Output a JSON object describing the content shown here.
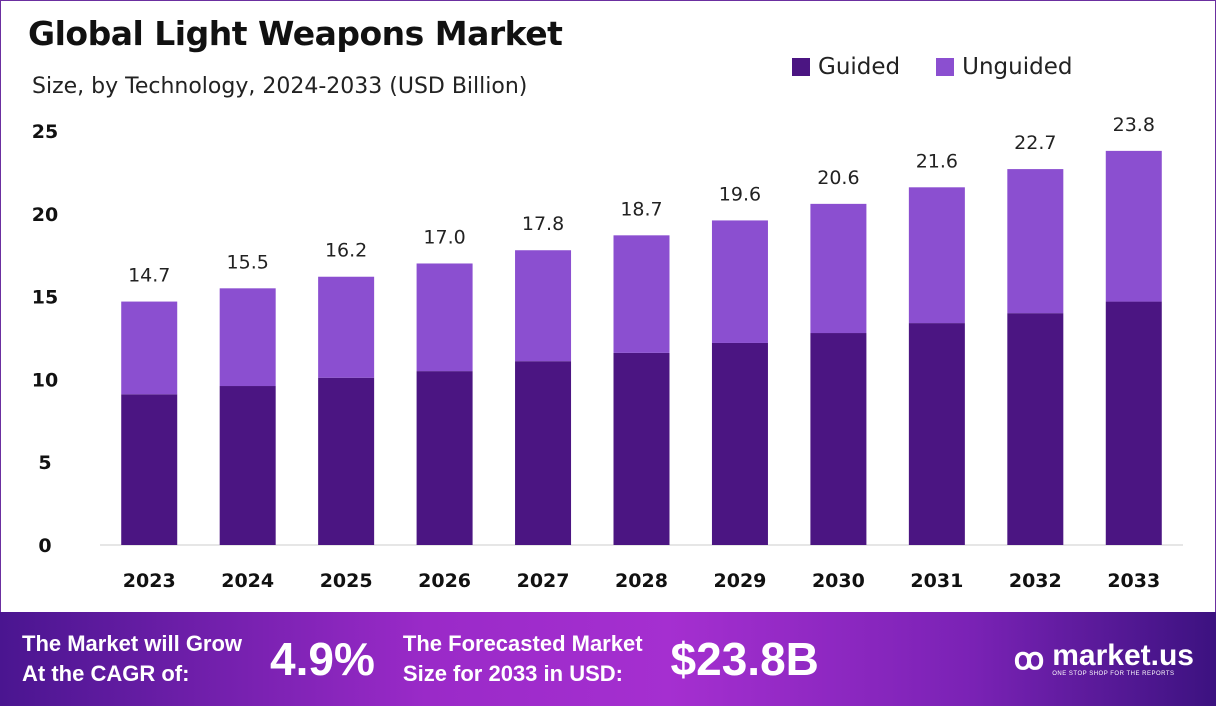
{
  "chart_data": {
    "type": "bar",
    "stacked": true,
    "title": "Global Light Weapons Market",
    "subtitle": "Size, by Technology, 2024-2033 (USD Billion)",
    "categories": [
      "2023",
      "2024",
      "2025",
      "2026",
      "2027",
      "2028",
      "2029",
      "2030",
      "2031",
      "2032",
      "2033"
    ],
    "series": [
      {
        "name": "Guided",
        "color": "#4b1582",
        "values": [
          9.1,
          9.6,
          10.1,
          10.5,
          11.1,
          11.6,
          12.2,
          12.8,
          13.4,
          14.0,
          14.7
        ]
      },
      {
        "name": "Unguided",
        "color": "#8b4fd0",
        "values": [
          5.6,
          5.9,
          6.1,
          6.5,
          6.7,
          7.1,
          7.4,
          7.8,
          8.2,
          8.7,
          9.1
        ]
      }
    ],
    "totals": [
      "14.7",
      "15.5",
      "16.2",
      "17.0",
      "17.8",
      "18.7",
      "19.6",
      "20.6",
      "21.6",
      "22.7",
      "23.8"
    ],
    "yticks": [
      "0",
      "5",
      "10",
      "15",
      "20",
      "25"
    ],
    "ylim": [
      0,
      25
    ],
    "grid": false,
    "legend": "top-right"
  },
  "footer": {
    "cagr_label_1": "The Market will Grow",
    "cagr_label_2": "At the CAGR of:",
    "cagr_value": "4.9%",
    "forecast_label_1": "The Forecasted Market",
    "forecast_label_2": "Size for 2033 in USD:",
    "forecast_value": "$23.8B",
    "logo_text": "market.us",
    "logo_tagline": "ONE STOP SHOP FOR THE REPORTS"
  }
}
